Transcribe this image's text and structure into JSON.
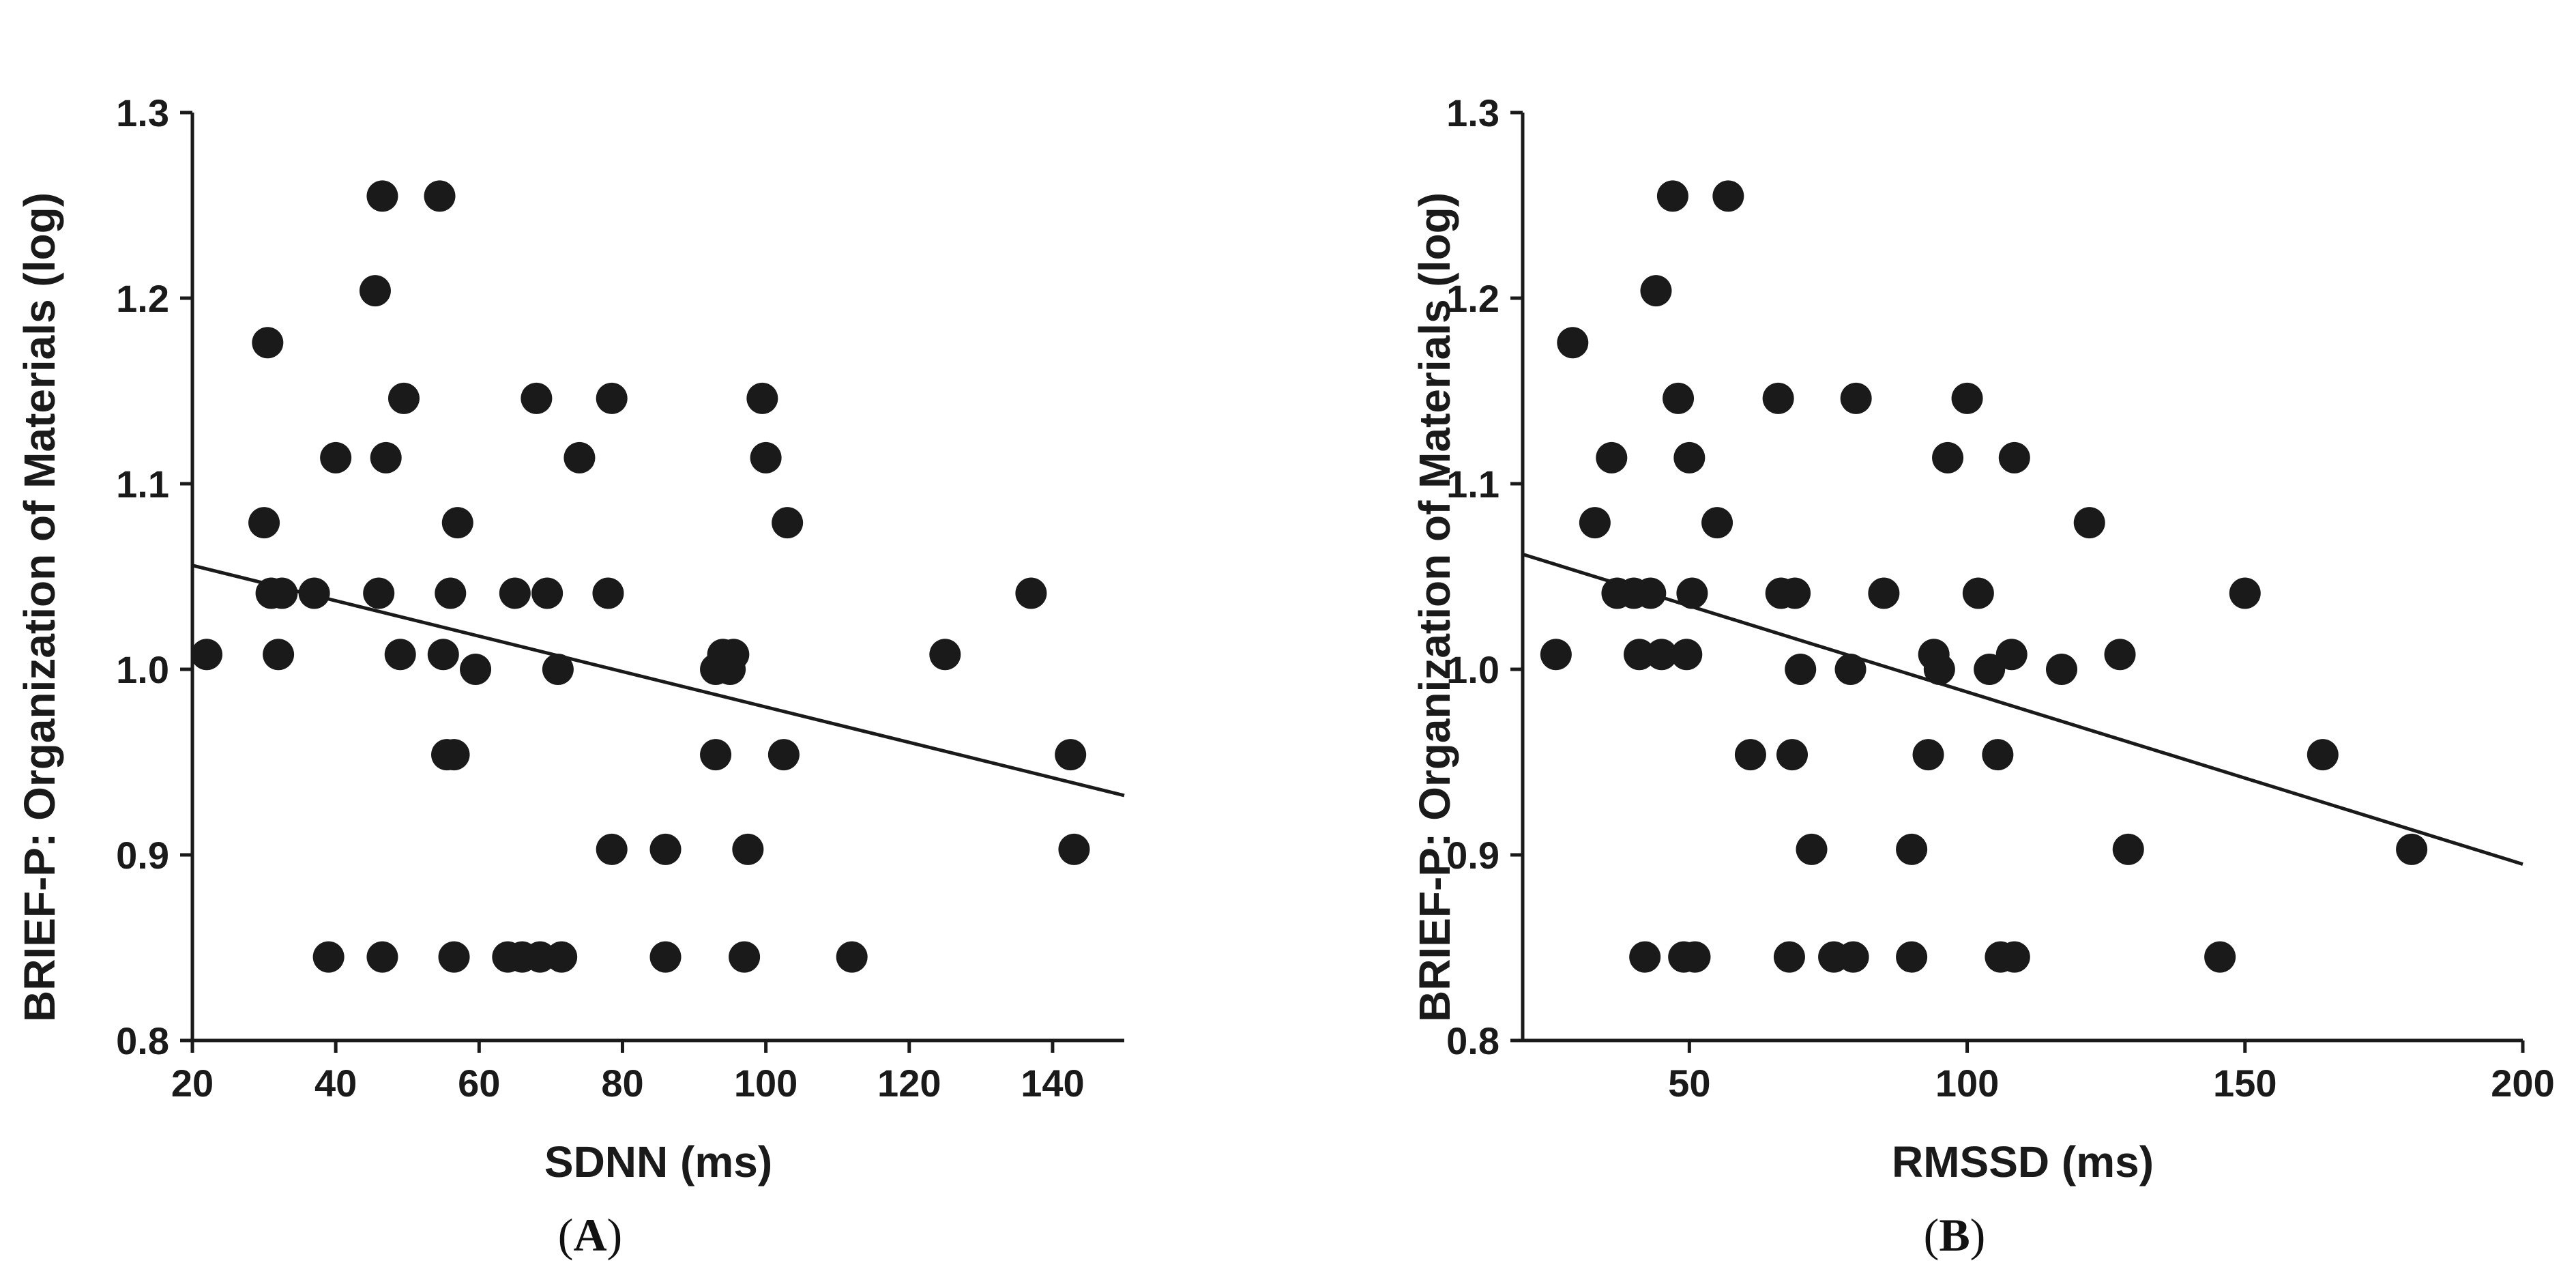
{
  "chart_data": [
    {
      "type": "scatter",
      "panel_label": {
        "open": "(",
        "letter": "A",
        "close": ")"
      },
      "xlabel": "SDNN (ms)",
      "ylabel": "BRIEF-P: Organization of Materials (log)",
      "xlim": [
        20,
        150
      ],
      "ylim": [
        0.8,
        1.3
      ],
      "xticks": [
        "20",
        "40",
        "60",
        "80",
        "100",
        "120",
        "140"
      ],
      "yticks": [
        "0.8",
        "0.9",
        "1.0",
        "1.1",
        "1.2",
        "1.3"
      ],
      "grid": false,
      "points": [
        [
          22,
          1.008
        ],
        [
          30,
          1.079
        ],
        [
          30.5,
          1.176
        ],
        [
          31,
          1.041
        ],
        [
          32,
          1.008
        ],
        [
          32.5,
          1.041
        ],
        [
          37,
          1.041
        ],
        [
          39,
          0.845
        ],
        [
          40,
          1.114
        ],
        [
          45.5,
          1.204
        ],
        [
          46,
          1.041
        ],
        [
          46.5,
          0.845
        ],
        [
          46.5,
          1.255
        ],
        [
          47,
          1.114
        ],
        [
          49,
          1.008
        ],
        [
          49.5,
          1.146
        ],
        [
          54.5,
          1.255
        ],
        [
          55,
          1.008
        ],
        [
          55.5,
          0.954
        ],
        [
          56,
          1.041
        ],
        [
          56.5,
          0.954
        ],
        [
          56.5,
          0.845
        ],
        [
          57,
          1.079
        ],
        [
          59.5,
          1.0
        ],
        [
          64,
          0.845
        ],
        [
          65,
          1.041
        ],
        [
          66,
          0.845
        ],
        [
          68,
          1.146
        ],
        [
          68.5,
          0.845
        ],
        [
          69.5,
          1.041
        ],
        [
          71,
          1.0
        ],
        [
          71.5,
          0.845
        ],
        [
          74,
          1.114
        ],
        [
          78,
          1.041
        ],
        [
          78.5,
          0.903
        ],
        [
          78.5,
          1.146
        ],
        [
          86,
          0.903
        ],
        [
          86,
          0.845
        ],
        [
          93,
          0.954
        ],
        [
          93,
          1.0
        ],
        [
          94,
          1.008
        ],
        [
          95,
          1.0
        ],
        [
          95.5,
          1.008
        ],
        [
          97,
          0.845
        ],
        [
          97.5,
          0.903
        ],
        [
          99.5,
          1.146
        ],
        [
          100,
          1.114
        ],
        [
          102.5,
          0.954
        ],
        [
          103,
          1.079
        ],
        [
          112,
          0.845
        ],
        [
          125,
          1.008
        ],
        [
          137,
          1.041
        ],
        [
          142.5,
          0.954
        ],
        [
          143,
          0.903
        ]
      ],
      "fit_line": [
        [
          20,
          1.056
        ],
        [
          150,
          0.932
        ]
      ]
    },
    {
      "type": "scatter",
      "panel_label": {
        "open": "(",
        "letter": "B",
        "close": ")"
      },
      "xlabel": "RMSSD (ms)",
      "ylabel": "BRIEF-P: Organization of Materials (log)",
      "xlim": [
        20,
        200
      ],
      "ylim": [
        0.8,
        1.3
      ],
      "xticks": [
        "50",
        "100",
        "150",
        "200"
      ],
      "yticks": [
        "0.8",
        "0.9",
        "1.0",
        "1.1",
        "1.2",
        "1.3"
      ],
      "grid": false,
      "points": [
        [
          26,
          1.008
        ],
        [
          29,
          1.176
        ],
        [
          33,
          1.079
        ],
        [
          36,
          1.114
        ],
        [
          37,
          1.041
        ],
        [
          40,
          1.041
        ],
        [
          41,
          1.008
        ],
        [
          42,
          0.845
        ],
        [
          43,
          1.041
        ],
        [
          44,
          1.204
        ],
        [
          45,
          1.008
        ],
        [
          47,
          1.255
        ],
        [
          48,
          1.146
        ],
        [
          49,
          0.845
        ],
        [
          49.5,
          1.008
        ],
        [
          50,
          1.114
        ],
        [
          50.5,
          1.041
        ],
        [
          51,
          0.845
        ],
        [
          55,
          1.079
        ],
        [
          57,
          1.255
        ],
        [
          61,
          0.954
        ],
        [
          66,
          1.146
        ],
        [
          66.5,
          1.041
        ],
        [
          68,
          0.845
        ],
        [
          68.5,
          0.954
        ],
        [
          69,
          1.041
        ],
        [
          70,
          1.0
        ],
        [
          72,
          0.903
        ],
        [
          76,
          0.845
        ],
        [
          79,
          1.0
        ],
        [
          79.5,
          0.845
        ],
        [
          80,
          1.146
        ],
        [
          85,
          1.041
        ],
        [
          90,
          0.903
        ],
        [
          90,
          0.845
        ],
        [
          93,
          0.954
        ],
        [
          94,
          1.008
        ],
        [
          95,
          1.0
        ],
        [
          96.5,
          1.114
        ],
        [
          100,
          1.146
        ],
        [
          102,
          1.041
        ],
        [
          104,
          1.0
        ],
        [
          105.5,
          0.954
        ],
        [
          106,
          0.845
        ],
        [
          108,
          1.008
        ],
        [
          108.5,
          1.114
        ],
        [
          108.5,
          0.845
        ],
        [
          117,
          1.0
        ],
        [
          122,
          1.079
        ],
        [
          127.5,
          1.008
        ],
        [
          129,
          0.903
        ],
        [
          145.5,
          0.845
        ],
        [
          150,
          1.041
        ],
        [
          164,
          0.954
        ],
        [
          180,
          0.903
        ]
      ],
      "fit_line": [
        [
          20,
          1.062
        ],
        [
          200,
          0.895
        ]
      ]
    }
  ]
}
